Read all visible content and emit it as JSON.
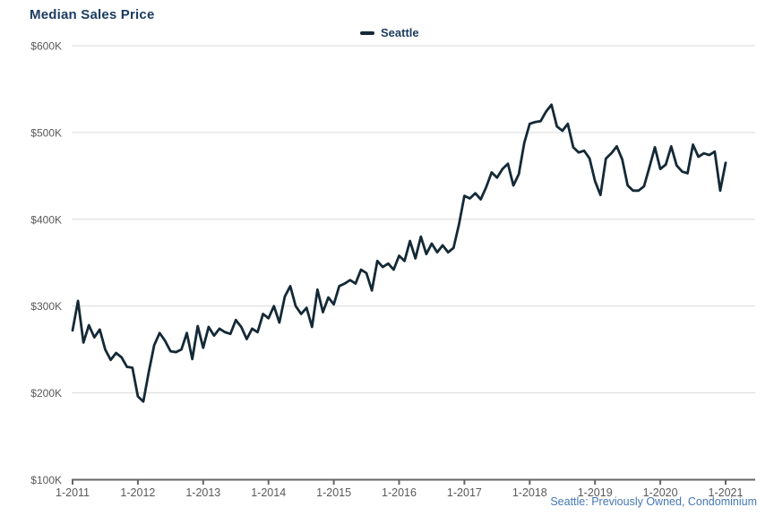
{
  "title": "Median Sales Price",
  "legend": {
    "label": "Seattle"
  },
  "footer": {
    "source_note": "Seattle: Previously Owned, Condominium"
  },
  "colors": {
    "title_text": "#1d3c60",
    "legend_text": "#1d3c60",
    "line": "#142936",
    "gridline": "#d9d9d9",
    "axis_line": "#666666",
    "tick_text": "#595959",
    "source_text": "#4577b5",
    "background": "#ffffff"
  },
  "chart_data": {
    "type": "line",
    "title": "Median Sales Price",
    "xlabel": "",
    "ylabel": "",
    "unit": "USD thousands",
    "frequency": "monthly",
    "x_start": "1-2011",
    "x_end": "1-2021",
    "x_tick_labels": [
      "1-2011",
      "1-2012",
      "1-2013",
      "1-2014",
      "1-2015",
      "1-2016",
      "1-2017",
      "1-2018",
      "1-2019",
      "1-2020",
      "1-2021"
    ],
    "y_tick_labels": [
      "$600K",
      "$500K",
      "$400K",
      "$300K",
      "$200K",
      "$100K"
    ],
    "y_ticks_k": [
      600,
      500,
      400,
      300,
      200,
      100
    ],
    "ylim_k": [
      100,
      600
    ],
    "grid": true,
    "legend_position": "top-center",
    "series": [
      {
        "name": "Seattle",
        "values_k": [
          272,
          306,
          258,
          278,
          264,
          273,
          250,
          238,
          246,
          241,
          230,
          229,
          196,
          190,
          224,
          255,
          269,
          260,
          248,
          247,
          250,
          269,
          239,
          277,
          252,
          276,
          266,
          274,
          270,
          268,
          284,
          276,
          262,
          274,
          270,
          291,
          286,
          300,
          281,
          311,
          323,
          300,
          291,
          298,
          276,
          319,
          293,
          310,
          302,
          323,
          326,
          330,
          326,
          342,
          338,
          318,
          352,
          345,
          349,
          342,
          358,
          352,
          375,
          355,
          380,
          360,
          372,
          362,
          370,
          362,
          367,
          394,
          427,
          424,
          430,
          423,
          437,
          454,
          448,
          458,
          464,
          439,
          452,
          488,
          510,
          512,
          513,
          524,
          532,
          507,
          502,
          510,
          483,
          477,
          479,
          470,
          444,
          428,
          470,
          476,
          484,
          469,
          439,
          433,
          433,
          438,
          460,
          483,
          458,
          463,
          484,
          462,
          455,
          453,
          486,
          472,
          476,
          474,
          478,
          433,
          465
        ]
      }
    ]
  }
}
